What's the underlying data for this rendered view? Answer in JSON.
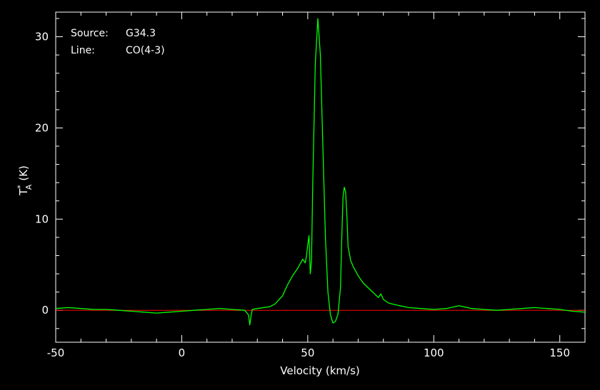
{
  "chart_data": {
    "type": "line",
    "title": "",
    "xlabel": "Velocity (km/s)",
    "ylabel": "T*A (K)",
    "ylabel_main": "T",
    "ylabel_sup": "*",
    "ylabel_sub": "A",
    "ylabel_unit": "(K)",
    "xlim": [
      -50,
      160
    ],
    "ylim": [
      -3.5,
      32.7
    ],
    "xticks": [
      -50,
      0,
      50,
      100,
      150
    ],
    "xtick_labels": [
      "-50",
      "0",
      "50",
      "100",
      "150"
    ],
    "yticks": [
      0,
      10,
      20,
      30
    ],
    "ytick_labels": [
      "0",
      "10",
      "20",
      "30"
    ],
    "grid": false,
    "annotations": {
      "source_label": "Source:",
      "source_value": "G34.3",
      "line_label": "Line:",
      "line_value": "CO(4-3)"
    },
    "colors": {
      "background": "#000000",
      "axes": "#ffffff",
      "spectrum": "#00ff00",
      "baseline": "#ff0000"
    },
    "baseline_value": 0,
    "series": [
      {
        "x": [
          -50,
          -45,
          -40,
          -35,
          -30,
          -25,
          -20,
          -15,
          -10,
          -5,
          0,
          5,
          10,
          15,
          20,
          25,
          26.5,
          27,
          27.5,
          28,
          30,
          35,
          37,
          40,
          42,
          44,
          46,
          48,
          49,
          49.5,
          50,
          50.5,
          51,
          51.5,
          52,
          53,
          54,
          55,
          56,
          57,
          58,
          59,
          60,
          61,
          62,
          63,
          63.5,
          64,
          64.5,
          65,
          65.5,
          66,
          67,
          68,
          70,
          72,
          75,
          78,
          79,
          80,
          82,
          85,
          90,
          95,
          100,
          105,
          110,
          115,
          120,
          125,
          130,
          135,
          140,
          145,
          150,
          155,
          160
        ],
        "values": [
          0.2,
          0.3,
          0.2,
          0.1,
          0.1,
          0.0,
          -0.1,
          -0.2,
          -0.3,
          -0.2,
          -0.1,
          0.0,
          0.1,
          0.2,
          0.1,
          0.0,
          -0.5,
          -1.6,
          -0.6,
          0.1,
          0.2,
          0.4,
          0.7,
          1.6,
          2.8,
          3.8,
          4.6,
          5.6,
          5.2,
          6.0,
          7.2,
          8.2,
          4.0,
          5.5,
          14.0,
          27.0,
          32.0,
          28.0,
          18.0,
          8.0,
          2.0,
          -0.5,
          -1.4,
          -1.2,
          -0.4,
          2.5,
          8.0,
          12.5,
          13.5,
          13.0,
          10.5,
          7.0,
          5.5,
          4.8,
          3.8,
          3.0,
          2.2,
          1.4,
          1.8,
          1.2,
          0.8,
          0.6,
          0.3,
          0.2,
          0.1,
          0.2,
          0.5,
          0.2,
          0.1,
          0.0,
          0.1,
          0.2,
          0.3,
          0.2,
          0.1,
          -0.1,
          -0.2
        ]
      }
    ]
  }
}
